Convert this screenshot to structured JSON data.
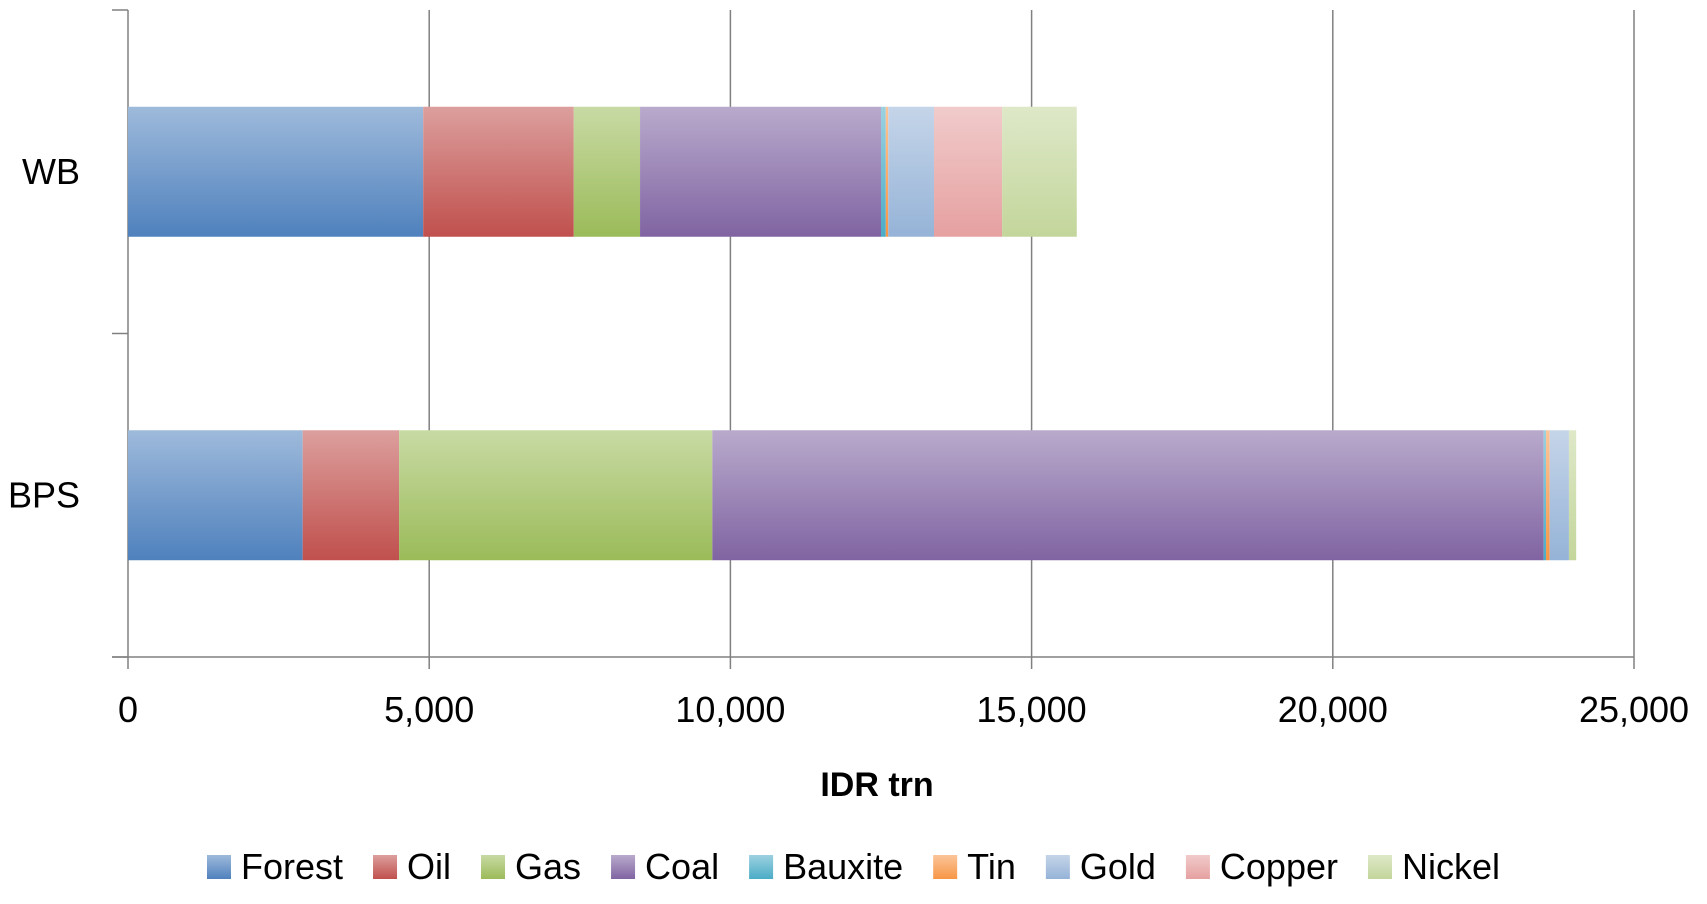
{
  "chart_data": {
    "type": "bar",
    "orientation": "horizontal",
    "stacked": true,
    "title": "",
    "xlabel": "IDR trn",
    "ylabel": "",
    "xlim": [
      0,
      25000
    ],
    "xticks": [
      0,
      5000,
      10000,
      15000,
      20000,
      25000
    ],
    "xtick_labels": [
      "0",
      "5,000",
      "10,000",
      "15,000",
      "20,000",
      "25,000"
    ],
    "categories": [
      "WB",
      "BPS"
    ],
    "grid": true,
    "legend_position": "bottom",
    "series": [
      {
        "name": "Forest",
        "color": "#4f81bd",
        "values": [
          4900,
          2900
        ]
      },
      {
        "name": "Oil",
        "color": "#c0504d",
        "values": [
          2500,
          1600
        ]
      },
      {
        "name": "Gas",
        "color": "#9bbb59",
        "values": [
          1100,
          5200
        ]
      },
      {
        "name": "Coal",
        "color": "#8064a2",
        "values": [
          4000,
          13800
        ]
      },
      {
        "name": "Bauxite",
        "color": "#4bacc6",
        "values": [
          80,
          40
        ]
      },
      {
        "name": "Tin",
        "color": "#f79646",
        "values": [
          40,
          60
        ]
      },
      {
        "name": "Gold",
        "color": "#95b3d7",
        "values": [
          760,
          320
        ]
      },
      {
        "name": "Copper",
        "color": "#e6a0a0",
        "values": [
          1130,
          0
        ]
      },
      {
        "name": "Nickel",
        "color": "#c3d69b",
        "values": [
          1240,
          120
        ]
      }
    ]
  }
}
